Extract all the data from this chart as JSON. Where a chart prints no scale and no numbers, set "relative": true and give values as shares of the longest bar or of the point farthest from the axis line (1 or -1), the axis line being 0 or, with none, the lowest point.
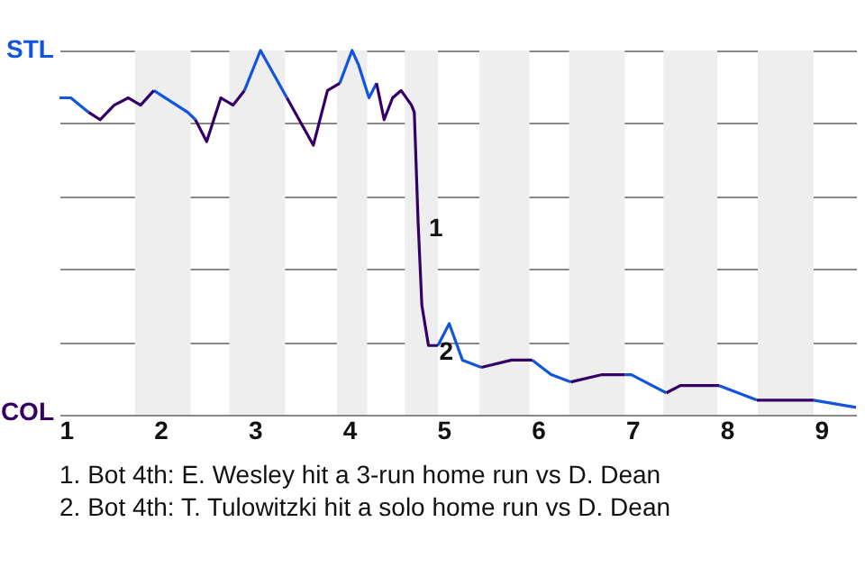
{
  "chart_data": {
    "type": "line",
    "relative": true,
    "x": [
      0.93,
      1.05,
      1.24,
      1.36,
      1.51,
      1.66,
      1.79,
      1.93,
      2.29,
      2.37,
      2.49,
      2.64,
      2.77,
      2.89,
      3.06,
      3.34,
      3.62,
      3.77,
      3.9,
      4.03,
      4.1,
      4.21,
      4.29,
      4.37,
      4.46,
      4.55,
      4.66,
      4.69,
      4.73,
      4.77,
      4.84,
      4.94,
      5.06,
      5.2,
      5.4,
      5.72,
      5.94,
      6.14,
      6.35,
      6.68,
      6.92,
      6.99,
      7.21,
      7.36,
      7.51,
      7.92,
      8.12,
      8.32,
      8.61,
      8.92,
      9.37
    ],
    "series": [
      {
        "color": "#1155dd",
        "values": [
          0.87,
          0.87,
          0.83,
          null,
          null,
          null,
          null,
          0.89,
          0.83,
          0.81,
          null,
          null,
          null,
          0.89,
          1.0,
          0.87,
          null,
          null,
          0.91,
          1.0,
          0.96,
          0.87,
          0.91,
          null,
          null,
          null,
          null,
          null,
          null,
          null,
          null,
          0.19,
          0.25,
          0.15,
          0.13,
          null,
          0.15,
          0.11,
          0.09,
          null,
          0.11,
          0.11,
          0.08,
          0.06,
          null,
          0.08,
          0.06,
          0.04,
          null,
          0.04,
          0.02
        ]
      },
      {
        "color": "#330066",
        "values": [
          null,
          null,
          0.83,
          0.81,
          0.85,
          0.87,
          0.85,
          0.89,
          null,
          0.81,
          0.75,
          0.87,
          0.85,
          0.89,
          null,
          0.87,
          0.74,
          0.89,
          0.91,
          null,
          null,
          null,
          0.91,
          0.81,
          0.87,
          0.89,
          0.85,
          0.83,
          0.53,
          0.3,
          0.19,
          0.19,
          null,
          null,
          0.13,
          0.15,
          0.15,
          null,
          0.09,
          0.11,
          0.11,
          null,
          null,
          0.06,
          0.08,
          0.08,
          null,
          0.04,
          0.04,
          0.04,
          null
        ]
      }
    ],
    "xlim": [
      0.93,
      9.37
    ],
    "xticks": [
      1,
      2,
      3,
      4,
      5,
      6,
      7,
      8,
      9
    ],
    "grid": "y",
    "bands": [
      {
        "axis": "x",
        "from": 1.73,
        "to": 2.32,
        "color": "#eeeeee"
      },
      {
        "axis": "x",
        "from": 2.73,
        "to": 3.32,
        "color": "#eeeeee"
      },
      {
        "axis": "x",
        "from": 3.87,
        "to": 4.19,
        "color": "#eeeeee"
      },
      {
        "axis": "x",
        "from": 4.59,
        "to": 4.94,
        "color": "#eeeeee"
      },
      {
        "axis": "x",
        "from": 5.38,
        "to": 5.91,
        "color": "#eeeeee"
      },
      {
        "axis": "x",
        "from": 6.33,
        "to": 6.92,
        "color": "#eeeeee"
      },
      {
        "axis": "x",
        "from": 7.33,
        "to": 7.9,
        "color": "#eeeeee"
      },
      {
        "axis": "x",
        "from": 8.33,
        "to": 8.92,
        "color": "#eeeeee"
      }
    ],
    "annotations": [
      "STL",
      "COL",
      {
        "text": "1",
        "x": 4.73,
        "y": 0.53
      },
      {
        "text": "2",
        "x": 4.84,
        "y": 0.19
      },
      "1. Bot 4th: E. Wesley hit a 3-run home run vs D. Dean",
      "2. Bot 4th: T. Tulowitzki hit a solo home run vs D. Dean"
    ]
  }
}
